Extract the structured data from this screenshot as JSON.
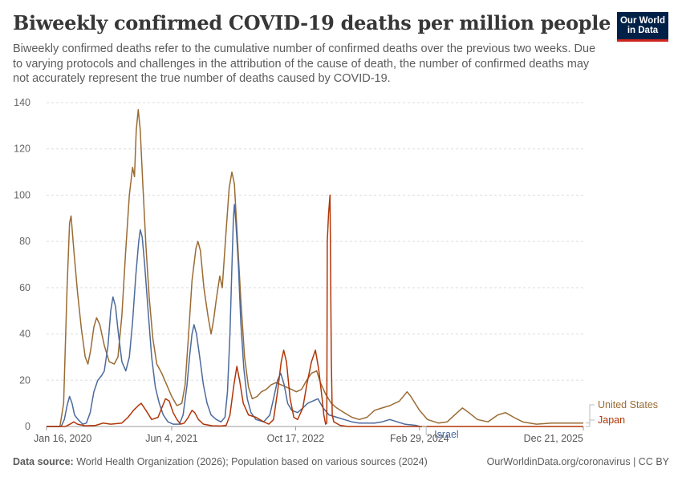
{
  "header": {
    "title": "Biweekly confirmed COVID-19 deaths per million people",
    "subtitle": "Biweekly confirmed deaths refer to the cumulative number of confirmed deaths over the previous two weeks. Due to varying protocols and challenges in the attribution of the cause of death, the number of confirmed deaths may not accurately represent the true number of deaths caused by COVID-19.",
    "logo_line1": "Our World",
    "logo_line2": "in Data"
  },
  "footer": {
    "source_label": "Data source:",
    "source_text": "World Health Organization (2026); Population based on various sources (2024)",
    "right_text": "OurWorldinData.org/coronavirus | CC BY"
  },
  "colors": {
    "United States": "#9a6b33",
    "Japan": "#b13507",
    "Israel": "#4c6a9c",
    "grid": "#dddddd",
    "axis_text": "#666666"
  },
  "chart_data": {
    "type": "line",
    "title": "Biweekly confirmed COVID-19 deaths per million people",
    "xlabel": "",
    "ylabel": "",
    "xlim": [
      "2020-01-16",
      "2025-12-21"
    ],
    "ylim": [
      0,
      140
    ],
    "y_ticks": [
      "0",
      "20",
      "40",
      "60",
      "80",
      "100",
      "120",
      "140"
    ],
    "x_ticks": [
      {
        "date": "2020-01-16",
        "label": "Jan 16, 2020"
      },
      {
        "date": "2021-06-04",
        "label": "Jun 4, 2021"
      },
      {
        "date": "2022-10-17",
        "label": "Oct 17, 2022"
      },
      {
        "date": "2024-02-29",
        "label": "Feb 29, 2024"
      },
      {
        "date": "2025-12-21",
        "label": "Dec 21, 2025"
      }
    ],
    "grid": true,
    "legend": "right, end of lines",
    "series": [
      {
        "name": "United States",
        "points": [
          [
            "2020-01-16",
            0
          ],
          [
            "2020-03-10",
            0
          ],
          [
            "2020-03-25",
            10
          ],
          [
            "2020-04-08",
            60
          ],
          [
            "2020-04-18",
            88
          ],
          [
            "2020-04-24",
            91
          ],
          [
            "2020-05-06",
            75
          ],
          [
            "2020-05-20",
            58
          ],
          [
            "2020-06-05",
            42
          ],
          [
            "2020-06-20",
            30
          ],
          [
            "2020-07-01",
            27
          ],
          [
            "2020-07-12",
            33
          ],
          [
            "2020-07-25",
            43
          ],
          [
            "2020-08-05",
            47
          ],
          [
            "2020-08-18",
            44
          ],
          [
            "2020-09-05",
            35
          ],
          [
            "2020-09-25",
            28
          ],
          [
            "2020-10-15",
            27
          ],
          [
            "2020-10-30",
            30
          ],
          [
            "2020-11-15",
            48
          ],
          [
            "2020-11-30",
            75
          ],
          [
            "2020-12-15",
            100
          ],
          [
            "2020-12-28",
            112
          ],
          [
            "2021-01-05",
            108
          ],
          [
            "2021-01-12",
            128
          ],
          [
            "2021-01-20",
            137
          ],
          [
            "2021-01-28",
            128
          ],
          [
            "2021-02-08",
            104
          ],
          [
            "2021-02-20",
            78
          ],
          [
            "2021-03-05",
            56
          ],
          [
            "2021-03-20",
            38
          ],
          [
            "2021-04-05",
            27
          ],
          [
            "2021-04-25",
            23
          ],
          [
            "2021-05-15",
            18
          ],
          [
            "2021-06-04",
            13
          ],
          [
            "2021-06-25",
            9
          ],
          [
            "2021-07-15",
            10
          ],
          [
            "2021-07-28",
            18
          ],
          [
            "2021-08-10",
            38
          ],
          [
            "2021-08-25",
            63
          ],
          [
            "2021-09-10",
            77
          ],
          [
            "2021-09-18",
            80
          ],
          [
            "2021-09-28",
            76
          ],
          [
            "2021-10-12",
            60
          ],
          [
            "2021-10-28",
            48
          ],
          [
            "2021-11-10",
            40
          ],
          [
            "2021-11-20",
            46
          ],
          [
            "2021-12-01",
            55
          ],
          [
            "2021-12-15",
            65
          ],
          [
            "2021-12-25",
            60
          ],
          [
            "2022-01-08",
            82
          ],
          [
            "2022-01-22",
            103
          ],
          [
            "2022-02-02",
            110
          ],
          [
            "2022-02-12",
            105
          ],
          [
            "2022-02-25",
            80
          ],
          [
            "2022-03-10",
            55
          ],
          [
            "2022-03-25",
            30
          ],
          [
            "2022-04-10",
            17
          ],
          [
            "2022-04-25",
            12
          ],
          [
            "2022-05-15",
            13
          ],
          [
            "2022-06-01",
            15
          ],
          [
            "2022-06-20",
            16
          ],
          [
            "2022-07-10",
            18
          ],
          [
            "2022-07-30",
            19
          ],
          [
            "2022-08-20",
            18
          ],
          [
            "2022-09-10",
            17
          ],
          [
            "2022-10-01",
            16
          ],
          [
            "2022-10-20",
            15
          ],
          [
            "2022-11-10",
            16
          ],
          [
            "2022-12-01",
            20
          ],
          [
            "2022-12-20",
            23
          ],
          [
            "2023-01-10",
            24
          ],
          [
            "2023-01-25",
            19
          ],
          [
            "2023-02-15",
            14
          ],
          [
            "2023-03-10",
            10
          ],
          [
            "2023-04-01",
            8
          ],
          [
            "2023-05-01",
            6
          ],
          [
            "2023-06-01",
            4
          ],
          [
            "2023-07-01",
            3
          ],
          [
            "2023-08-01",
            4
          ],
          [
            "2023-09-01",
            7
          ],
          [
            "2023-10-01",
            8
          ],
          [
            "2023-11-01",
            9
          ],
          [
            "2023-12-10",
            11
          ],
          [
            "2024-01-10",
            15
          ],
          [
            "2024-01-25",
            13
          ],
          [
            "2024-02-29",
            7
          ],
          [
            "2024-04-01",
            3
          ],
          [
            "2024-05-15",
            1.5
          ],
          [
            "2024-06-20",
            2
          ],
          [
            "2024-07-20",
            5
          ],
          [
            "2024-08-20",
            8
          ],
          [
            "2024-09-15",
            6
          ],
          [
            "2024-10-20",
            3
          ],
          [
            "2024-12-01",
            2
          ],
          [
            "2025-01-10",
            5
          ],
          [
            "2025-02-10",
            6
          ],
          [
            "2025-03-15",
            4
          ],
          [
            "2025-04-20",
            2
          ],
          [
            "2025-06-15",
            1
          ],
          [
            "2025-08-15",
            1.5
          ],
          [
            "2025-10-01",
            1.5
          ],
          [
            "2025-12-21",
            1.5
          ]
        ]
      },
      {
        "name": "Japan",
        "points": [
          [
            "2020-01-16",
            0
          ],
          [
            "2020-04-01",
            0
          ],
          [
            "2020-04-20",
            1
          ],
          [
            "2020-05-05",
            2
          ],
          [
            "2020-05-20",
            1
          ],
          [
            "2020-06-20",
            0.3
          ],
          [
            "2020-08-01",
            0.5
          ],
          [
            "2020-09-01",
            1.5
          ],
          [
            "2020-10-01",
            1
          ],
          [
            "2020-11-15",
            1.5
          ],
          [
            "2020-12-10",
            4
          ],
          [
            "2021-01-01",
            7
          ],
          [
            "2021-01-20",
            9
          ],
          [
            "2021-02-01",
            10
          ],
          [
            "2021-02-20",
            7
          ],
          [
            "2021-03-15",
            3
          ],
          [
            "2021-04-10",
            4
          ],
          [
            "2021-04-25",
            8
          ],
          [
            "2021-05-10",
            12
          ],
          [
            "2021-05-25",
            11
          ],
          [
            "2021-06-10",
            6
          ],
          [
            "2021-06-25",
            3
          ],
          [
            "2021-07-10",
            1
          ],
          [
            "2021-07-25",
            1.5
          ],
          [
            "2021-08-10",
            4
          ],
          [
            "2021-08-25",
            7
          ],
          [
            "2021-09-05",
            6
          ],
          [
            "2021-09-20",
            3
          ],
          [
            "2021-10-10",
            1
          ],
          [
            "2021-11-15",
            0.3
          ],
          [
            "2021-12-20",
            0.2
          ],
          [
            "2022-01-10",
            0.5
          ],
          [
            "2022-01-25",
            5
          ],
          [
            "2022-02-10",
            18
          ],
          [
            "2022-02-22",
            26
          ],
          [
            "2022-03-05",
            20
          ],
          [
            "2022-03-20",
            10
          ],
          [
            "2022-04-10",
            5
          ],
          [
            "2022-05-10",
            4
          ],
          [
            "2022-06-10",
            2
          ],
          [
            "2022-07-01",
            1
          ],
          [
            "2022-07-20",
            3
          ],
          [
            "2022-08-05",
            15
          ],
          [
            "2022-08-20",
            28
          ],
          [
            "2022-08-30",
            33
          ],
          [
            "2022-09-10",
            28
          ],
          [
            "2022-09-25",
            12
          ],
          [
            "2022-10-10",
            4
          ],
          [
            "2022-10-25",
            3
          ],
          [
            "2022-11-15",
            8
          ],
          [
            "2022-12-01",
            18
          ],
          [
            "2022-12-20",
            28
          ],
          [
            "2023-01-05",
            33
          ],
          [
            "2023-01-18",
            25
          ],
          [
            "2023-02-01",
            12
          ],
          [
            "2023-02-08",
            5
          ],
          [
            "2023-02-15",
            1
          ],
          [
            "2023-02-20",
            1.5
          ],
          [
            "2023-02-22",
            80
          ],
          [
            "2023-02-27",
            92
          ],
          [
            "2023-03-05",
            100
          ],
          [
            "2023-03-10",
            30
          ],
          [
            "2023-03-14",
            5
          ],
          [
            "2023-03-20",
            2
          ],
          [
            "2023-04-15",
            0.5
          ],
          [
            "2023-05-15",
            0
          ],
          [
            "2025-12-21",
            0
          ]
        ]
      },
      {
        "name": "Israel",
        "points": [
          [
            "2020-01-16",
            0
          ],
          [
            "2020-03-15",
            0
          ],
          [
            "2020-03-28",
            3
          ],
          [
            "2020-04-08",
            9
          ],
          [
            "2020-04-18",
            13
          ],
          [
            "2020-04-28",
            10
          ],
          [
            "2020-05-08",
            5
          ],
          [
            "2020-05-22",
            3
          ],
          [
            "2020-06-10",
            1
          ],
          [
            "2020-06-25",
            1.5
          ],
          [
            "2020-07-10",
            6
          ],
          [
            "2020-07-25",
            15
          ],
          [
            "2020-08-10",
            20
          ],
          [
            "2020-08-25",
            22
          ],
          [
            "2020-09-05",
            24
          ],
          [
            "2020-09-20",
            35
          ],
          [
            "2020-10-01",
            50
          ],
          [
            "2020-10-10",
            56
          ],
          [
            "2020-10-20",
            52
          ],
          [
            "2020-11-01",
            40
          ],
          [
            "2020-11-15",
            28
          ],
          [
            "2020-12-01",
            24
          ],
          [
            "2020-12-15",
            30
          ],
          [
            "2020-12-28",
            45
          ],
          [
            "2021-01-10",
            65
          ],
          [
            "2021-01-22",
            80
          ],
          [
            "2021-01-28",
            85
          ],
          [
            "2021-02-05",
            82
          ],
          [
            "2021-02-15",
            70
          ],
          [
            "2021-03-01",
            50
          ],
          [
            "2021-03-15",
            30
          ],
          [
            "2021-03-30",
            17
          ],
          [
            "2021-04-15",
            10
          ],
          [
            "2021-05-01",
            5
          ],
          [
            "2021-05-20",
            2
          ],
          [
            "2021-06-10",
            1
          ],
          [
            "2021-07-05",
            1
          ],
          [
            "2021-07-20",
            5
          ],
          [
            "2021-08-05",
            18
          ],
          [
            "2021-08-15",
            30
          ],
          [
            "2021-08-25",
            40
          ],
          [
            "2021-09-02",
            44
          ],
          [
            "2021-09-12",
            40
          ],
          [
            "2021-09-25",
            30
          ],
          [
            "2021-10-10",
            18
          ],
          [
            "2021-10-25",
            10
          ],
          [
            "2021-11-10",
            5
          ],
          [
            "2021-12-01",
            3
          ],
          [
            "2021-12-20",
            2
          ],
          [
            "2022-01-05",
            4
          ],
          [
            "2022-01-15",
            15
          ],
          [
            "2022-01-25",
            40
          ],
          [
            "2022-02-01",
            65
          ],
          [
            "2022-02-08",
            90
          ],
          [
            "2022-02-12",
            96
          ],
          [
            "2022-02-18",
            88
          ],
          [
            "2022-02-28",
            70
          ],
          [
            "2022-03-10",
            45
          ],
          [
            "2022-03-22",
            25
          ],
          [
            "2022-04-05",
            12
          ],
          [
            "2022-04-20",
            6
          ],
          [
            "2022-05-10",
            3
          ],
          [
            "2022-06-10",
            2
          ],
          [
            "2022-07-05",
            5
          ],
          [
            "2022-07-20",
            12
          ],
          [
            "2022-08-05",
            20
          ],
          [
            "2022-08-18",
            23
          ],
          [
            "2022-09-01",
            18
          ],
          [
            "2022-09-15",
            10
          ],
          [
            "2022-10-01",
            7
          ],
          [
            "2022-10-25",
            6
          ],
          [
            "2022-11-15",
            8
          ],
          [
            "2022-12-05",
            10
          ],
          [
            "2022-12-25",
            11
          ],
          [
            "2023-01-15",
            12
          ],
          [
            "2023-02-05",
            8
          ],
          [
            "2023-03-01",
            5
          ],
          [
            "2023-04-01",
            4
          ],
          [
            "2023-05-01",
            3
          ],
          [
            "2023-06-01",
            2
          ],
          [
            "2023-07-01",
            1.5
          ],
          [
            "2023-08-01",
            1.5
          ],
          [
            "2023-09-01",
            1.5
          ],
          [
            "2023-10-01",
            2
          ],
          [
            "2023-11-01",
            3
          ],
          [
            "2023-12-01",
            2
          ],
          [
            "2024-01-01",
            1
          ],
          [
            "2024-02-15",
            0.5
          ],
          [
            "2024-03-01",
            0
          ]
        ]
      }
    ]
  }
}
